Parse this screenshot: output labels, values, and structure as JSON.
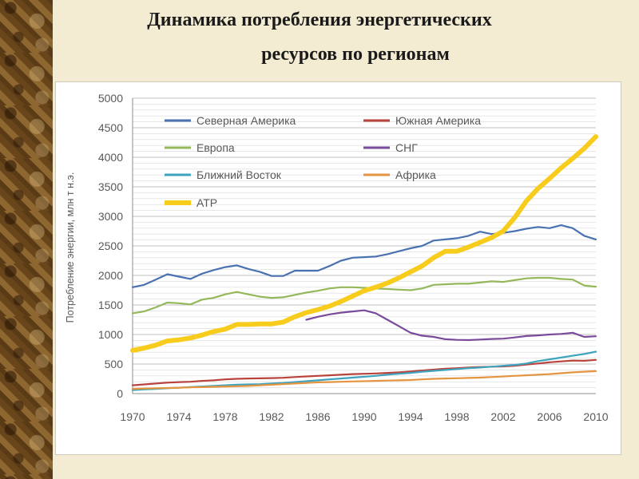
{
  "slide": {
    "title_line1": "Динамика потребления энергетических",
    "title_line2": "ресурсов по регионам"
  },
  "colors": {
    "background": "#f3ecd2",
    "panel": "#ffffff",
    "grid": "#d9d9d9"
  },
  "chart_data": {
    "type": "line",
    "title": "",
    "xlabel": "",
    "ylabel": "Потребление энергии, млн т н.э.",
    "xlim": [
      1970,
      2010
    ],
    "ylim": [
      0,
      5000
    ],
    "yticks": [
      "0",
      "500",
      "1000",
      "1500",
      "2000",
      "2500",
      "3000",
      "3500",
      "4000",
      "4500",
      "5000"
    ],
    "xticks": [
      "1970",
      "1974",
      "1978",
      "1982",
      "1986",
      "1990",
      "1994",
      "1998",
      "2002",
      "2006",
      "2010"
    ],
    "grid": true,
    "legend_position": "top-left",
    "x": [
      1970,
      1971,
      1972,
      1973,
      1974,
      1975,
      1976,
      1977,
      1978,
      1979,
      1980,
      1981,
      1982,
      1983,
      1984,
      1985,
      1986,
      1987,
      1988,
      1989,
      1990,
      1991,
      1992,
      1993,
      1994,
      1995,
      1996,
      1997,
      1998,
      1999,
      2000,
      2001,
      2002,
      2003,
      2004,
      2005,
      2006,
      2007,
      2008,
      2009,
      2010
    ],
    "series": [
      {
        "name": "Северная Америка",
        "color": "#4a72b0",
        "width": 2.2,
        "values": [
          1800,
          1840,
          1930,
          2020,
          1980,
          1940,
          2030,
          2090,
          2140,
          2170,
          2110,
          2060,
          1990,
          1990,
          2080,
          2080,
          2080,
          2160,
          2250,
          2300,
          2310,
          2320,
          2360,
          2410,
          2460,
          2500,
          2590,
          2610,
          2630,
          2670,
          2740,
          2700,
          2720,
          2750,
          2790,
          2820,
          2800,
          2850,
          2800,
          2670,
          2610
        ]
      },
      {
        "name": "Южная Америка",
        "color": "#b8433d",
        "width": 2.2,
        "values": [
          140,
          155,
          170,
          185,
          195,
          200,
          215,
          225,
          240,
          250,
          255,
          258,
          262,
          268,
          280,
          290,
          300,
          310,
          320,
          330,
          335,
          340,
          350,
          360,
          375,
          390,
          405,
          420,
          430,
          440,
          450,
          455,
          460,
          470,
          490,
          510,
          530,
          545,
          560,
          555,
          570
        ]
      },
      {
        "name": "Европа",
        "color": "#94b85b",
        "width": 2.2,
        "values": [
          1360,
          1390,
          1460,
          1540,
          1530,
          1510,
          1590,
          1620,
          1680,
          1720,
          1680,
          1640,
          1620,
          1630,
          1670,
          1710,
          1740,
          1780,
          1800,
          1800,
          1790,
          1780,
          1770,
          1760,
          1750,
          1780,
          1840,
          1850,
          1860,
          1860,
          1880,
          1900,
          1890,
          1920,
          1950,
          1960,
          1960,
          1940,
          1930,
          1830,
          1810
        ]
      },
      {
        "name": "СНГ",
        "color": "#7a4b9a",
        "width": 2.2,
        "values": [
          null,
          null,
          null,
          null,
          null,
          null,
          null,
          null,
          null,
          null,
          null,
          null,
          null,
          null,
          null,
          1250,
          1300,
          1340,
          1370,
          1390,
          1410,
          1360,
          1250,
          1140,
          1030,
          980,
          960,
          920,
          910,
          905,
          915,
          925,
          930,
          950,
          975,
          985,
          1000,
          1010,
          1030,
          960,
          970
        ]
      },
      {
        "name": "Ближний Восток",
        "color": "#3ea4be",
        "width": 2.2,
        "values": [
          60,
          70,
          80,
          90,
          100,
          110,
          120,
          130,
          140,
          150,
          155,
          160,
          170,
          180,
          195,
          210,
          225,
          240,
          255,
          270,
          285,
          300,
          320,
          335,
          350,
          370,
          385,
          400,
          415,
          430,
          440,
          455,
          470,
          485,
          510,
          550,
          580,
          610,
          640,
          670,
          710
        ]
      },
      {
        "name": "Африка",
        "color": "#e59540",
        "width": 2.2,
        "values": [
          80,
          85,
          90,
          95,
          100,
          105,
          110,
          115,
          120,
          125,
          130,
          140,
          150,
          160,
          170,
          180,
          190,
          195,
          200,
          205,
          210,
          215,
          220,
          225,
          230,
          240,
          250,
          255,
          260,
          265,
          270,
          280,
          290,
          300,
          310,
          320,
          330,
          345,
          360,
          370,
          380
        ]
      },
      {
        "name": "АТР",
        "color": "#f7cc1c",
        "width": 6,
        "values": [
          730,
          770,
          820,
          890,
          910,
          940,
          990,
          1050,
          1090,
          1170,
          1170,
          1180,
          1180,
          1210,
          1300,
          1370,
          1420,
          1480,
          1560,
          1650,
          1740,
          1800,
          1870,
          1960,
          2060,
          2160,
          2300,
          2410,
          2410,
          2480,
          2560,
          2640,
          2750,
          2980,
          3260,
          3470,
          3640,
          3820,
          3980,
          4150,
          4350
        ]
      }
    ]
  }
}
